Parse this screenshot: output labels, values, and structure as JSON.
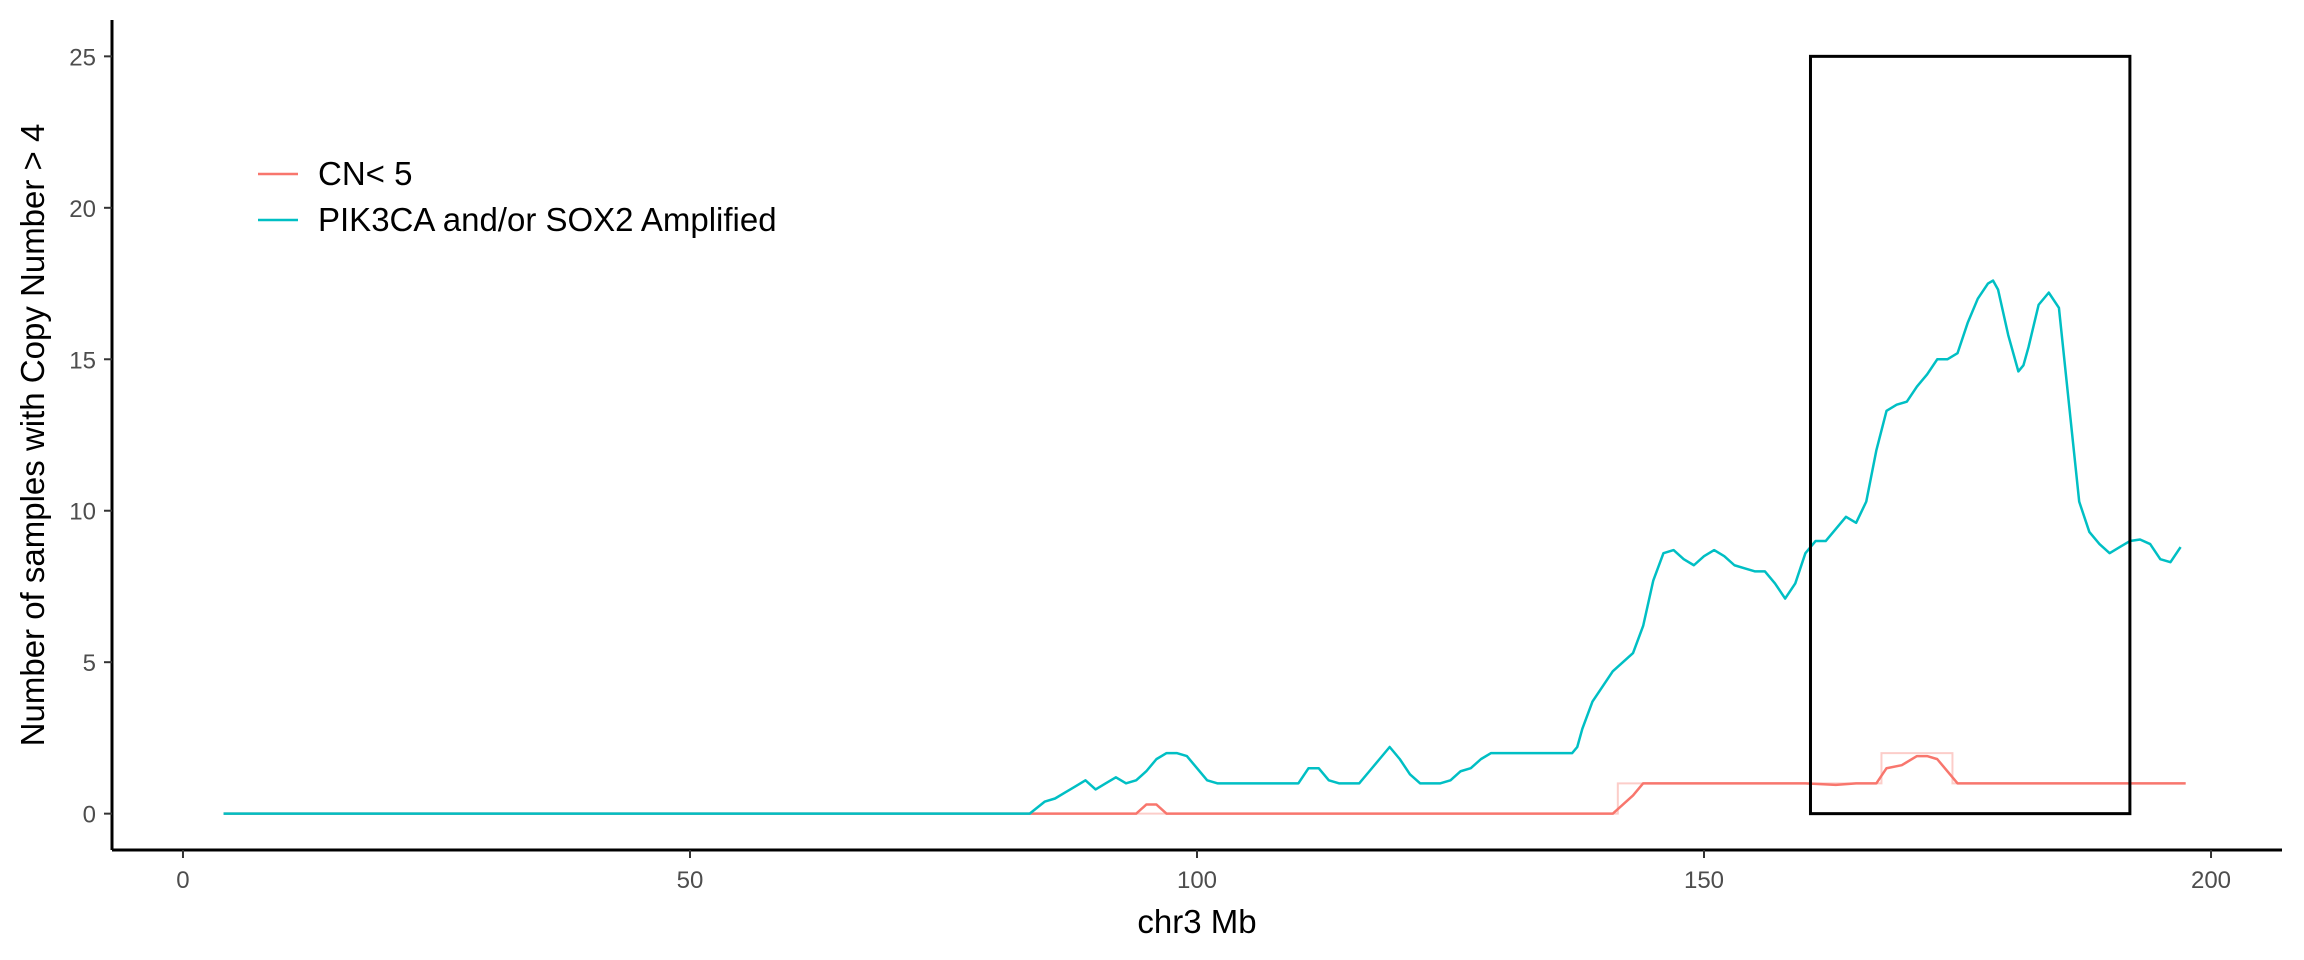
{
  "chart_data": {
    "type": "line",
    "title": "",
    "xlabel": "chr3 Mb",
    "ylabel": "Number of samples with Copy Number > 4",
    "xlim": [
      -7,
      207
    ],
    "ylim": [
      -1.2,
      26.2
    ],
    "x_ticks": [
      0,
      50,
      100,
      150,
      200
    ],
    "y_ticks": [
      0,
      5,
      10,
      15,
      20,
      25
    ],
    "grid": false,
    "legend_position": "top-left",
    "highlight_box": {
      "x0": 160.5,
      "x1": 192,
      "y0": 0,
      "y1": 25
    },
    "series": [
      {
        "name": "CN< 5",
        "color": "#F8766D",
        "raw_color": "#FCCDC9",
        "x": [
          4,
          94,
          95,
          96,
          97,
          141,
          143,
          144,
          160,
          163,
          165,
          167,
          168,
          169.5,
          171,
          172,
          173,
          175,
          177,
          197.5
        ],
        "y": [
          0,
          0,
          0.3,
          0.3,
          0,
          0,
          0.6,
          1,
          1,
          0.95,
          1,
          1,
          1.5,
          1.6,
          1.9,
          1.9,
          1.8,
          1.0,
          1,
          1
        ],
        "raw_x": [
          4,
          141.5,
          141.5,
          143.5,
          143.5,
          167.5,
          167.5,
          174.5,
          174.5,
          197.5
        ],
        "raw_y": [
          0,
          0,
          1,
          1,
          1,
          1,
          2,
          2,
          1,
          1
        ]
      },
      {
        "name": "PIK3CA and/or SOX2 Amplified",
        "color": "#00BFC4",
        "raw_color": "#C8EFF0",
        "x": [
          4,
          83.5,
          85,
          86,
          87,
          88,
          89,
          90,
          91,
          92,
          93,
          94,
          95,
          96,
          97,
          98,
          99,
          100,
          101,
          102,
          104,
          106,
          108,
          110,
          111,
          112,
          113,
          114,
          116,
          117,
          118,
          119,
          120,
          121,
          122,
          123,
          124,
          125,
          126,
          127,
          128,
          129,
          130,
          132,
          134,
          136,
          137,
          137.5,
          138,
          139,
          140,
          141,
          142,
          143,
          144,
          145,
          146,
          147,
          148,
          149,
          150,
          151,
          152,
          153,
          154,
          155,
          156,
          157,
          158,
          159,
          160,
          161,
          162,
          163,
          164,
          165,
          166,
          167,
          168,
          169,
          170,
          171,
          172,
          173,
          174,
          175,
          176,
          177,
          178,
          178.5,
          179,
          180,
          181,
          181.5,
          182,
          183,
          184,
          185,
          186,
          187,
          188,
          189,
          190,
          191,
          192,
          193,
          194,
          195,
          196,
          197
        ],
        "y": [
          0,
          0,
          0.4,
          0.5,
          0.7,
          0.9,
          1.1,
          0.8,
          1.0,
          1.2,
          1.0,
          1.1,
          1.4,
          1.8,
          2.0,
          2.0,
          1.9,
          1.5,
          1.1,
          1.0,
          1.0,
          1.0,
          1.0,
          1.0,
          1.5,
          1.5,
          1.1,
          1.0,
          1.0,
          1.4,
          1.8,
          2.2,
          1.8,
          1.3,
          1.0,
          1.0,
          1.0,
          1.1,
          1.4,
          1.5,
          1.8,
          2.0,
          2.0,
          2.0,
          2.0,
          2.0,
          2.0,
          2.2,
          2.8,
          3.7,
          4.2,
          4.7,
          5.0,
          5.3,
          6.2,
          7.7,
          8.6,
          8.7,
          8.4,
          8.2,
          8.5,
          8.7,
          8.5,
          8.2,
          8.1,
          8.0,
          8.0,
          7.6,
          7.1,
          7.6,
          8.6,
          9.0,
          9.0,
          9.4,
          9.8,
          9.6,
          10.3,
          12.0,
          13.3,
          13.5,
          13.6,
          14.1,
          14.5,
          15.0,
          15.0,
          15.2,
          16.2,
          17.0,
          17.5,
          17.6,
          17.3,
          15.8,
          14.6,
          14.8,
          15.4,
          16.8,
          17.2,
          16.7,
          13.5,
          10.3,
          9.3,
          8.9,
          8.6,
          8.8,
          9.0,
          9.05,
          8.9,
          8.4,
          8.3,
          8.8
        ]
      }
    ]
  }
}
